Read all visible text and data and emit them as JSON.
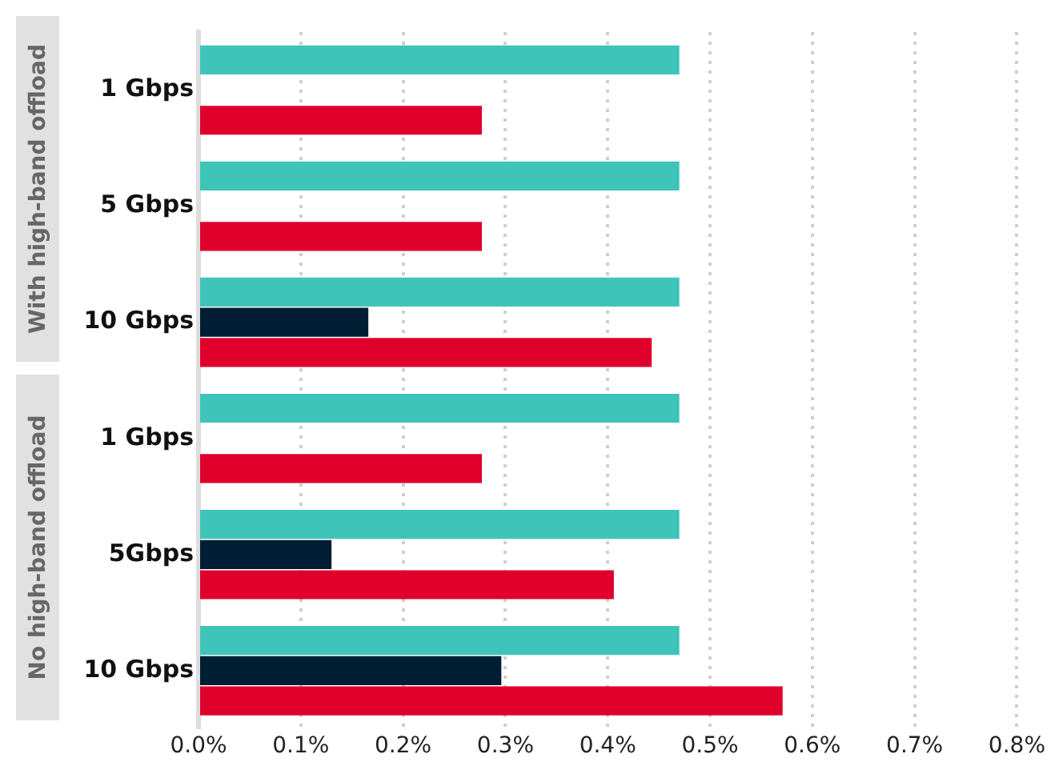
{
  "chart_data": {
    "type": "bar",
    "orientation": "horizontal",
    "categories": [
      "1 Gbps",
      "5 Gbps",
      "10 Gbps",
      "1 Gbps",
      "5Gbps",
      "10 Gbps"
    ],
    "series": [
      {
        "color": "#3ec4b8",
        "values": [
          0.47,
          0.47,
          0.47,
          0.47,
          0.47,
          0.47
        ]
      },
      {
        "color": "#001e33",
        "values": [
          0,
          0,
          0.166,
          0,
          0.13,
          0.296
        ]
      },
      {
        "color": "#df002c",
        "values": [
          0.277,
          0.277,
          0.443,
          0.277,
          0.406,
          0.571
        ]
      }
    ],
    "xlim": [
      0,
      0.8
    ],
    "xticks": [
      {
        "value": 0,
        "label": "0.0%"
      },
      {
        "value": 0.1,
        "label": "0.1%"
      },
      {
        "value": 0.2,
        "label": "0.2%"
      },
      {
        "value": 0.3,
        "label": "0.3%"
      },
      {
        "value": 0.4,
        "label": "0.4%"
      },
      {
        "value": 0.5,
        "label": "0.5%"
      },
      {
        "value": 0.6,
        "label": "0.6%"
      },
      {
        "value": 0.7,
        "label": "0.7%"
      },
      {
        "value": 0.8,
        "label": "0.8%"
      }
    ],
    "grid": "x",
    "legend": false,
    "annotations": [
      "With high-band offload",
      "No high-band offload"
    ]
  }
}
